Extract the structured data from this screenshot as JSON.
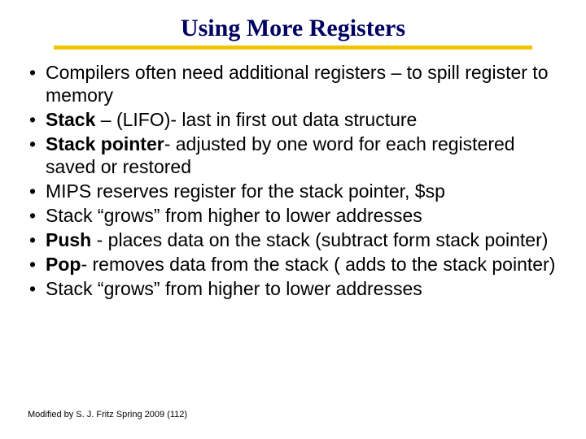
{
  "slide": {
    "title": "Using More Registers",
    "title_color": "#000060",
    "underline_color": "#f2c400",
    "bullets": [
      {
        "pref": "",
        "bold": "",
        "text": "Compilers often need additional registers – to spill register to memory"
      },
      {
        "pref": "",
        "bold": "Stack",
        "text": " – (LIFO)- last in first out data structure"
      },
      {
        "pref": "",
        "bold": "Stack pointer",
        "text": "- adjusted by one word for each registered saved or restored"
      },
      {
        "pref": "",
        "bold": "",
        "text": "MIPS reserves register for the stack pointer, $sp"
      },
      {
        "pref": "",
        "bold": "",
        "text": "Stack “grows” from higher to lower addresses"
      },
      {
        "pref": "",
        "bold": "Push",
        "text": " - places data on the stack (subtract form stack pointer)"
      },
      {
        "pref": "",
        "bold": "Pop",
        "text": "- removes data from the stack ( adds to the stack pointer)"
      },
      {
        "pref": "",
        "bold": "",
        "text": "Stack “grows” from higher to lower addresses"
      }
    ],
    "footer": "Modified by S. J. Fritz  Spring 2009 (112)"
  }
}
